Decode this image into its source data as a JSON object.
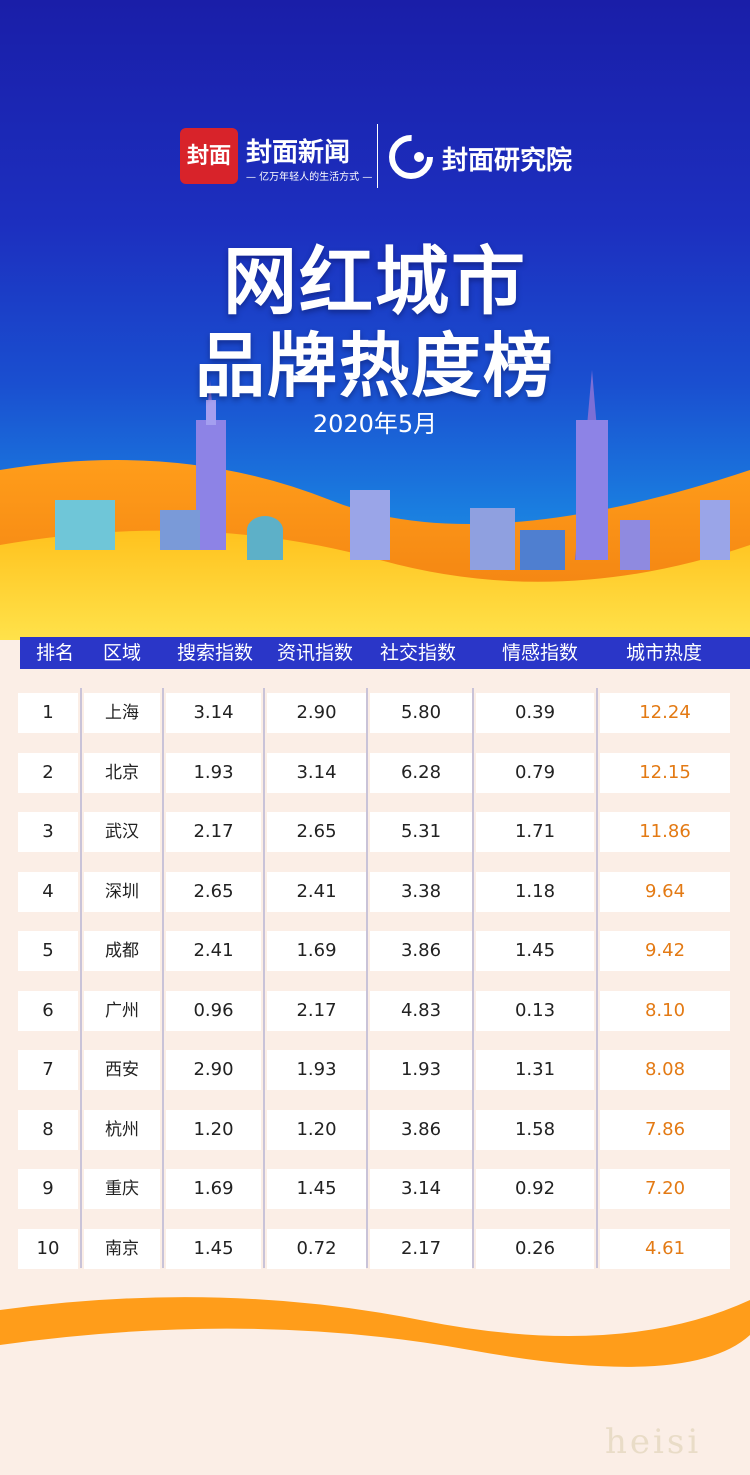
{
  "brand": {
    "logo_mark": "封面",
    "name": "封面新闻",
    "slogan": "— 亿万年轻人的生活方式 —",
    "institute": "封面研究院"
  },
  "title_line1": "网红城市",
  "title_line2": "品牌热度榜",
  "date": "2020年5月",
  "table": {
    "headers": [
      "排名",
      "区域",
      "搜索指数",
      "资讯指数",
      "社交指数",
      "情感指数",
      "城市热度"
    ],
    "rows": [
      {
        "rank": "1",
        "city": "上海",
        "search": "3.14",
        "news": "2.90",
        "social": "5.80",
        "emotion": "0.39",
        "heat": "12.24"
      },
      {
        "rank": "2",
        "city": "北京",
        "search": "1.93",
        "news": "3.14",
        "social": "6.28",
        "emotion": "0.79",
        "heat": "12.15"
      },
      {
        "rank": "3",
        "city": "武汉",
        "search": "2.17",
        "news": "2.65",
        "social": "5.31",
        "emotion": "1.71",
        "heat": "11.86"
      },
      {
        "rank": "4",
        "city": "深圳",
        "search": "2.65",
        "news": "2.41",
        "social": "3.38",
        "emotion": "1.18",
        "heat": "9.64"
      },
      {
        "rank": "5",
        "city": "成都",
        "search": "2.41",
        "news": "1.69",
        "social": "3.86",
        "emotion": "1.45",
        "heat": "9.42"
      },
      {
        "rank": "6",
        "city": "广州",
        "search": "0.96",
        "news": "2.17",
        "social": "4.83",
        "emotion": "0.13",
        "heat": "8.10"
      },
      {
        "rank": "7",
        "city": "西安",
        "search": "2.90",
        "news": "1.93",
        "social": "1.93",
        "emotion": "1.31",
        "heat": "8.08"
      },
      {
        "rank": "8",
        "city": "杭州",
        "search": "1.20",
        "news": "1.20",
        "social": "3.86",
        "emotion": "1.58",
        "heat": "7.86"
      },
      {
        "rank": "9",
        "city": "重庆",
        "search": "1.69",
        "news": "1.45",
        "social": "3.14",
        "emotion": "0.92",
        "heat": "7.20"
      },
      {
        "rank": "10",
        "city": "南京",
        "search": "1.45",
        "news": "0.72",
        "social": "2.17",
        "emotion": "0.26",
        "heat": "4.61"
      }
    ]
  },
  "watermark": "heisi",
  "colors": {
    "header_bg": "#2a36c8",
    "heat_text": "#e37a14",
    "logo_red": "#d8232a"
  }
}
